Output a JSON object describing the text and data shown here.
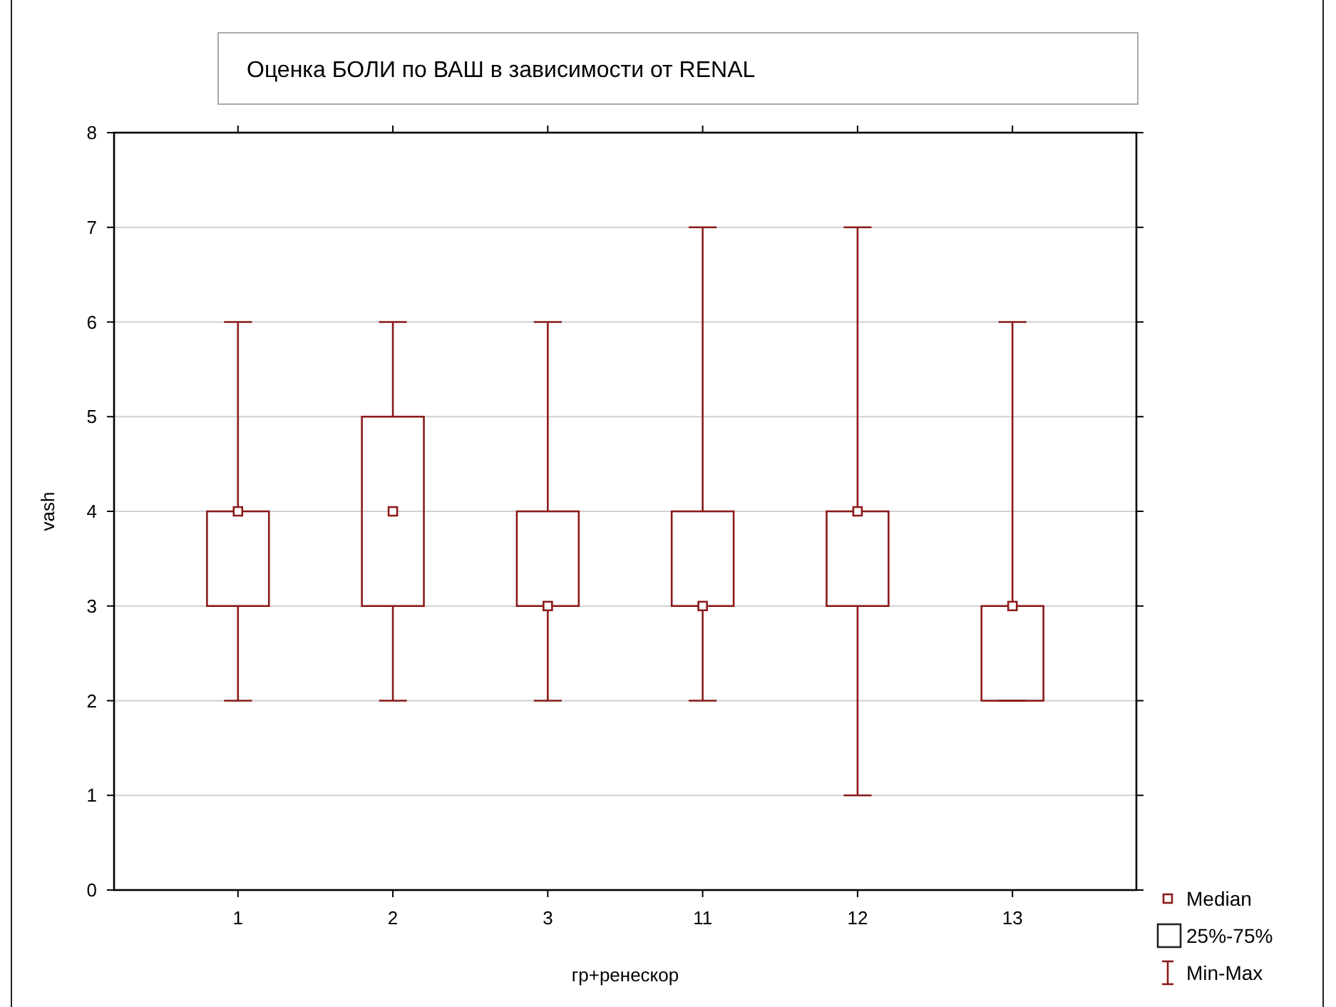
{
  "chart_data": {
    "type": "box",
    "title": "Оценка БОЛИ по ВАШ в зависимости от  RENAL",
    "xlabel": "гр+ренескор",
    "ylabel": "vash",
    "categories": [
      "1",
      "2",
      "3",
      "11",
      "12",
      "13"
    ],
    "boxes": [
      {
        "low": 2,
        "q1": 3,
        "median": 4,
        "q3": 4,
        "high": 6
      },
      {
        "low": 2,
        "q1": 3,
        "median": 4,
        "q3": 5,
        "high": 6
      },
      {
        "low": 2,
        "q1": 3,
        "median": 3,
        "q3": 4,
        "high": 6
      },
      {
        "low": 2,
        "q1": 3,
        "median": 3,
        "q3": 4,
        "high": 7
      },
      {
        "low": 1,
        "q1": 3,
        "median": 4,
        "q3": 4,
        "high": 7
      },
      {
        "low": 2,
        "q1": 2,
        "median": 3,
        "q3": 3,
        "high": 6
      }
    ],
    "color": "#8b1a1a",
    "ylim": [
      0,
      8
    ],
    "yticks": [
      0,
      1,
      2,
      3,
      4,
      5,
      6,
      7,
      8
    ],
    "grid": "y",
    "annotations": [
      "Median",
      "25%-75%",
      "Min-Max"
    ]
  }
}
